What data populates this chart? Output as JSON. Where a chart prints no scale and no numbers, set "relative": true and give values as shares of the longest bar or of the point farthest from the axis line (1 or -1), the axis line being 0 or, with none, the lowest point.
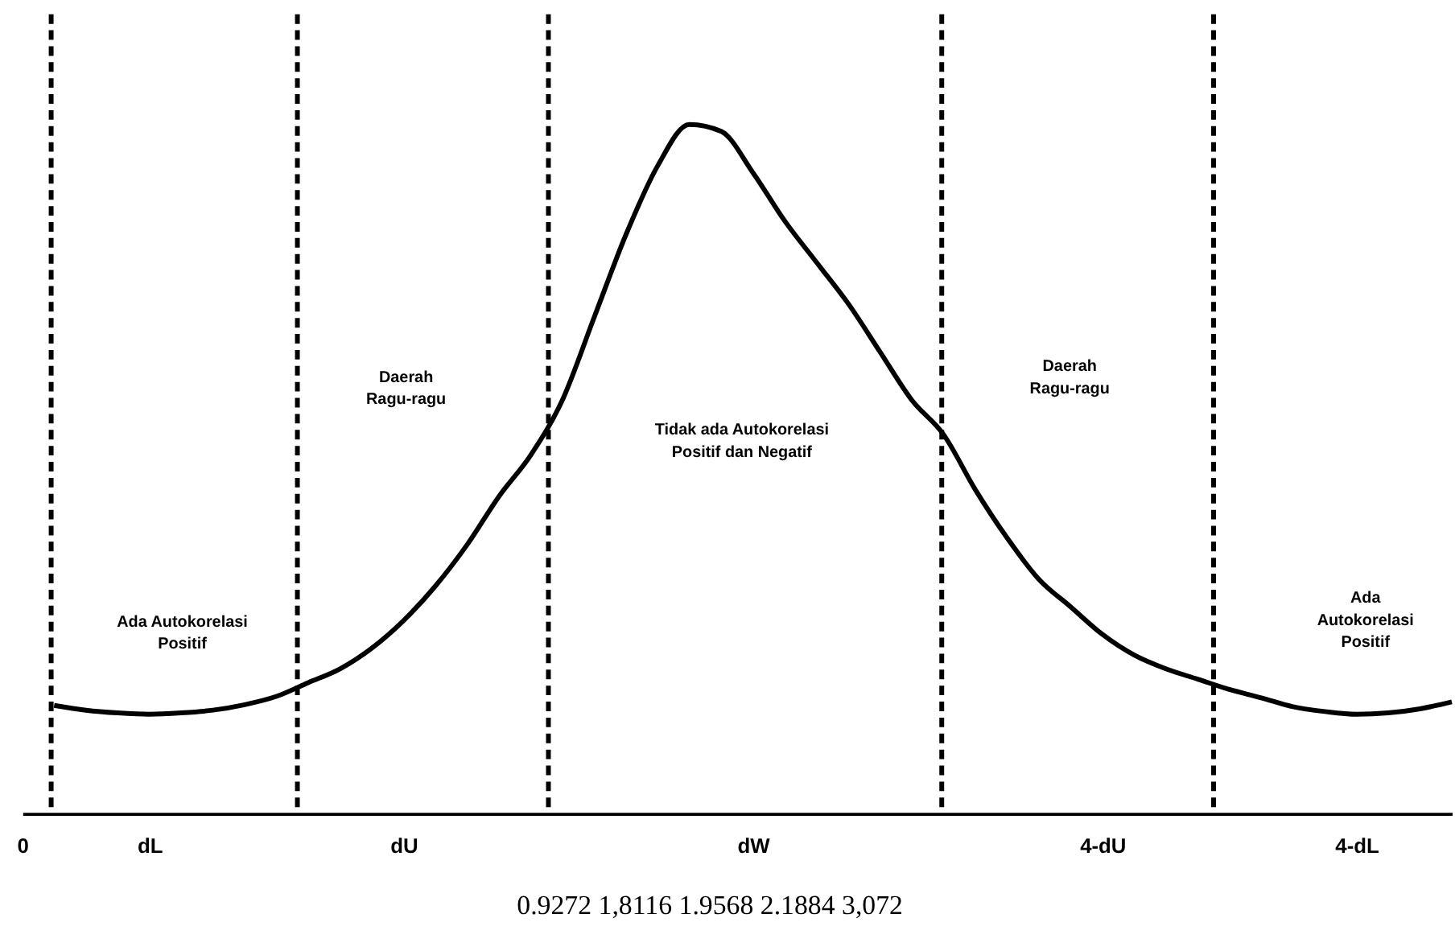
{
  "chart_data": {
    "type": "line",
    "relative": true,
    "categories": [
      "0",
      null,
      null,
      null,
      "dL",
      null,
      null,
      null,
      null,
      null,
      null,
      null,
      "dU",
      null,
      null,
      null,
      null,
      null,
      null,
      null,
      null,
      null,
      null,
      "dW",
      null,
      null,
      null,
      null,
      null,
      null,
      null,
      null,
      null,
      null,
      "4-dU",
      null,
      null,
      null,
      null,
      null,
      null,
      null,
      "4-dL",
      null,
      null,
      null
    ],
    "series": [
      {
        "color": "#000000",
        "values": [
          null,
          0.157,
          0.15,
          0.146,
          0.144,
          0.146,
          0.15,
          0.158,
          0.17,
          0.19,
          0.21,
          0.24,
          0.28,
          0.33,
          0.39,
          0.46,
          0.52,
          0.6,
          0.72,
          0.84,
          0.94,
          1.0,
          0.99,
          0.93,
          0.86,
          0.8,
          0.74,
          0.67,
          0.6,
          0.55,
          0.47,
          0.4,
          0.34,
          0.3,
          0.26,
          0.23,
          0.21,
          0.195,
          0.18,
          0.168,
          0.155,
          0.148,
          0.144,
          0.146,
          0.152,
          0.162
        ]
      }
    ],
    "annotations": [
      "Ada Autokorelasi\nPositif",
      "Daerah\nRagu-ragu",
      "Tidak ada Autokorelasi\nPositif dan Negatif",
      "Daerah\nRagu-ragu",
      "Ada\nAutokorelasi\nPositif",
      "0.9272  1,8116  1.9568  2.1884  3,072"
    ],
    "grid": "x",
    "marker": "none",
    "line_style": "solid",
    "legend": false
  }
}
